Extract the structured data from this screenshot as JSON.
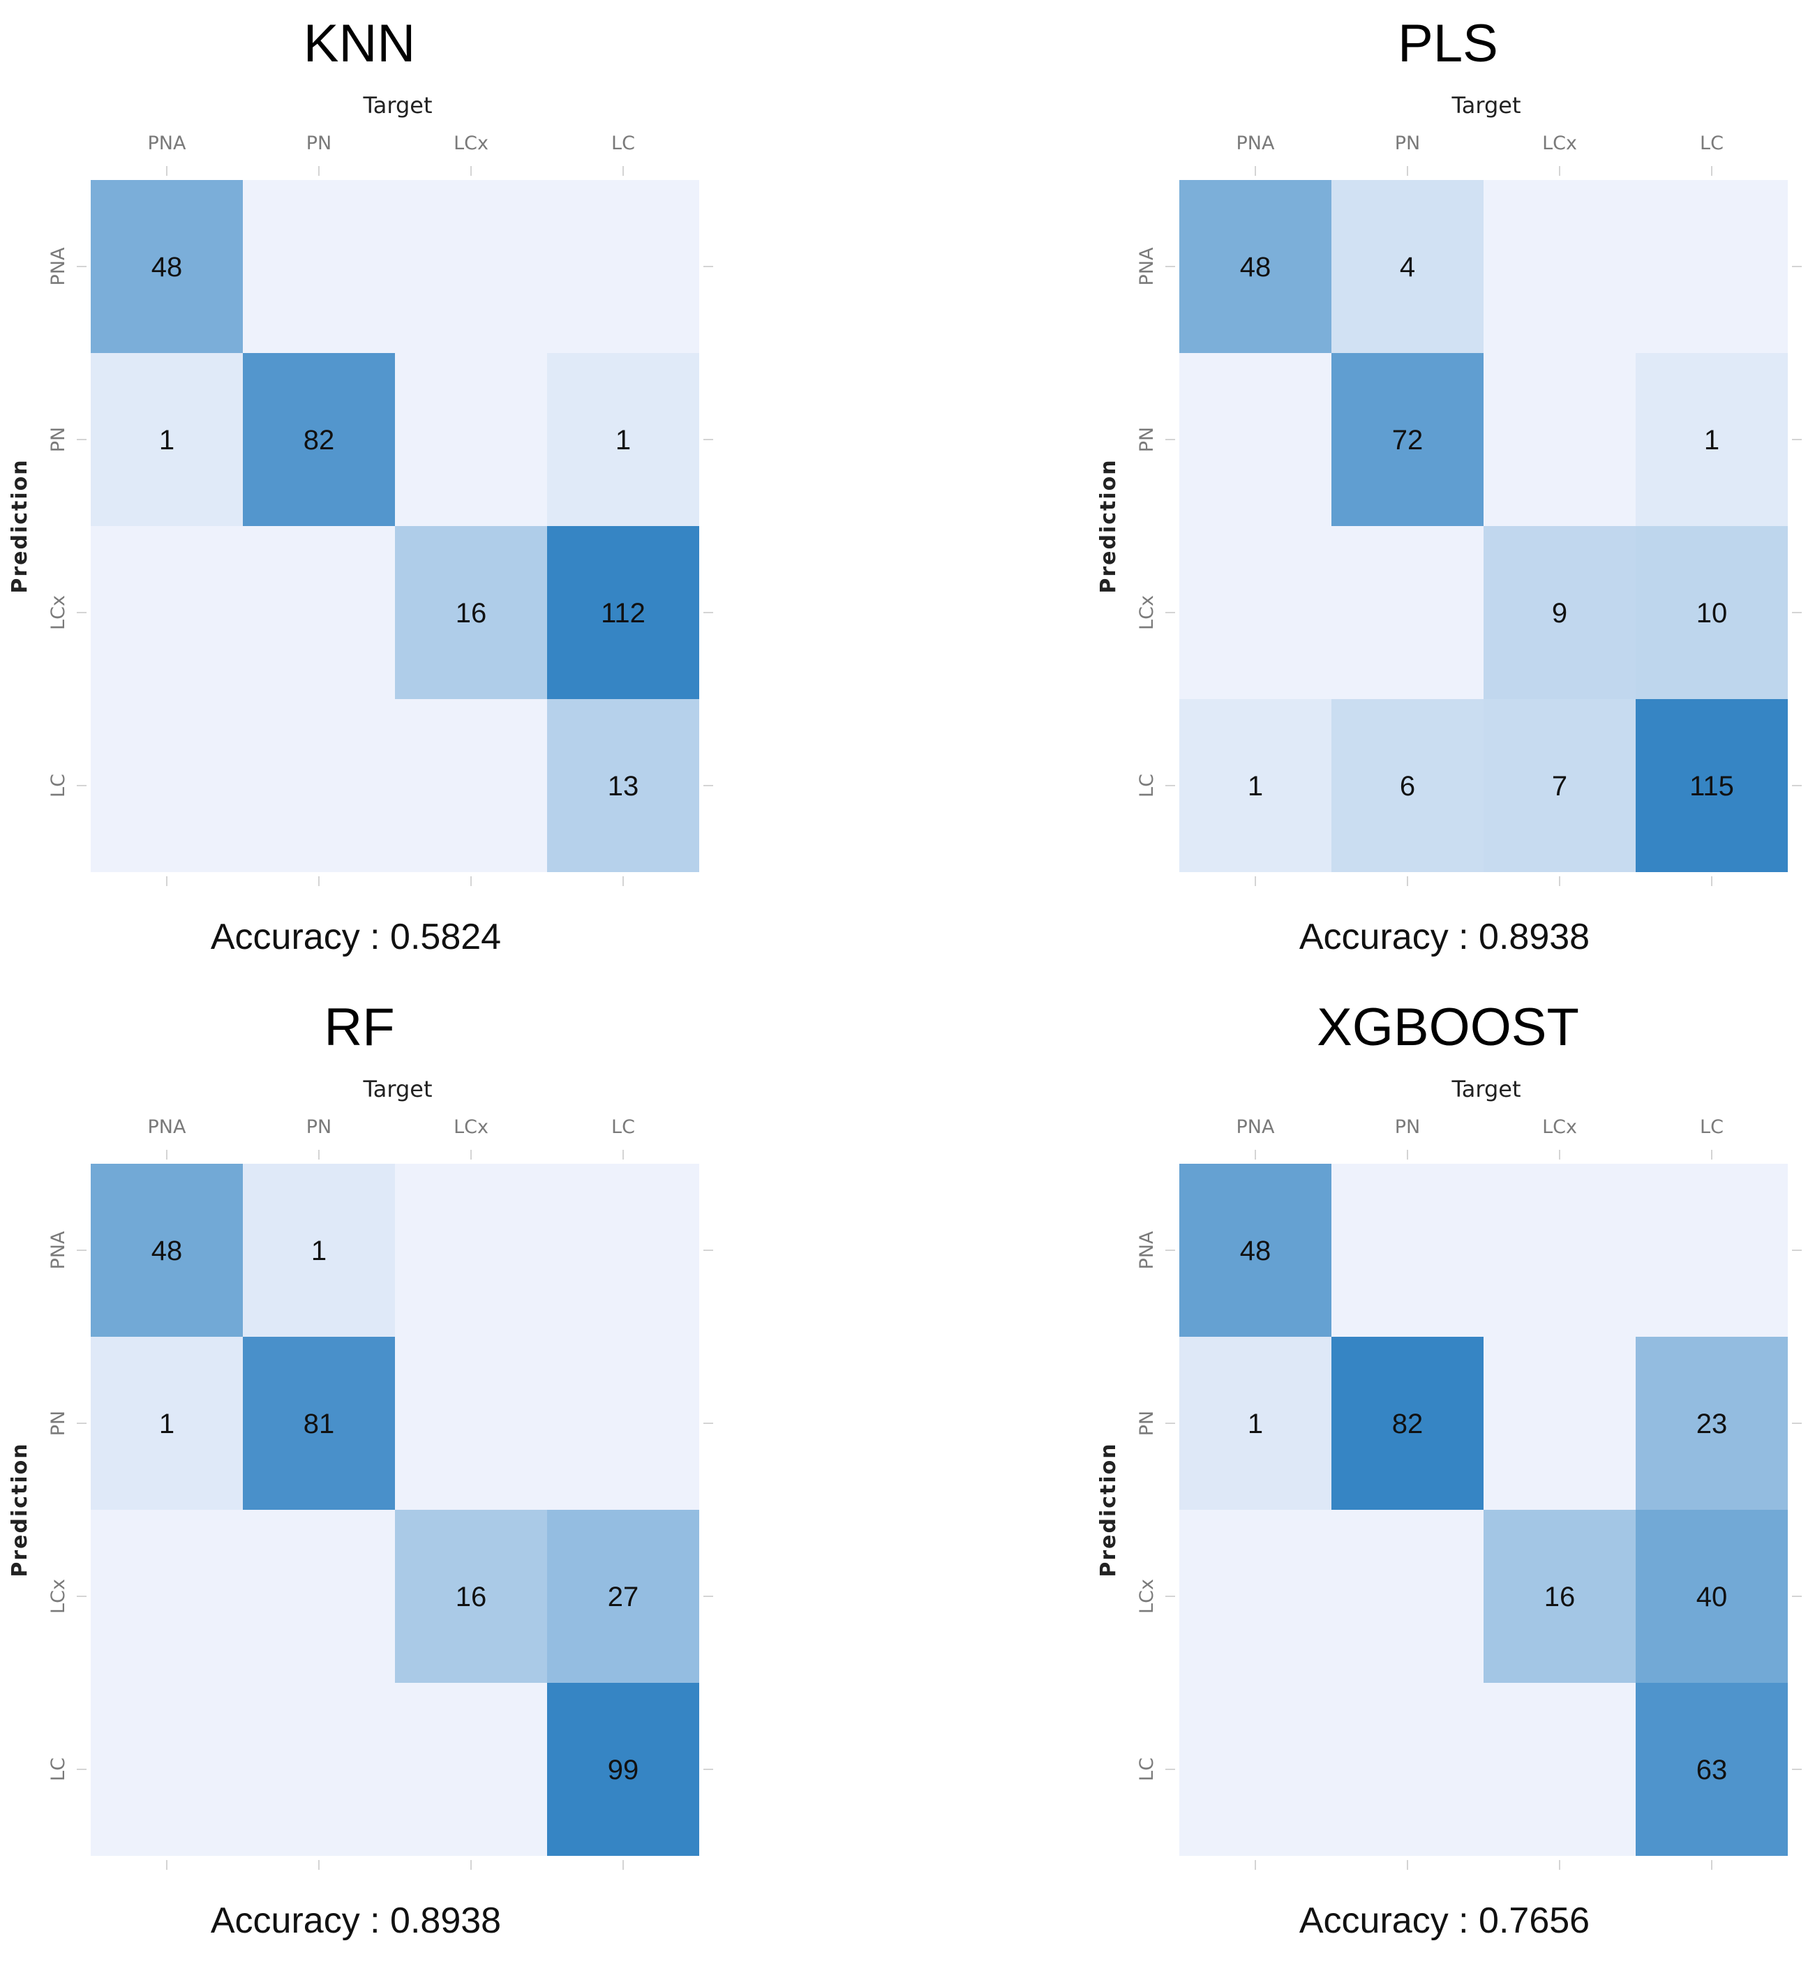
{
  "chart_data": [
    {
      "type": "heatmap",
      "title": "KNN",
      "xlabel": "Target",
      "ylabel": "Prediction",
      "categories": [
        "PNA",
        "PN",
        "LCx",
        "LC"
      ],
      "values": [
        [
          48,
          0,
          0,
          0
        ],
        [
          1,
          82,
          0,
          1
        ],
        [
          0,
          0,
          16,
          112
        ],
        [
          0,
          0,
          0,
          13
        ]
      ],
      "accuracy_label": "Accuracy : 0.5824"
    },
    {
      "type": "heatmap",
      "title": "PLS",
      "xlabel": "Target",
      "ylabel": "Prediction",
      "categories": [
        "PNA",
        "PN",
        "LCx",
        "LC"
      ],
      "values": [
        [
          48,
          4,
          0,
          0
        ],
        [
          0,
          72,
          0,
          1
        ],
        [
          0,
          0,
          9,
          10
        ],
        [
          1,
          6,
          7,
          115
        ]
      ],
      "accuracy_label": "Accuracy : 0.8938"
    },
    {
      "type": "heatmap",
      "title": "RF",
      "xlabel": "Target",
      "ylabel": "Prediction",
      "categories": [
        "PNA",
        "PN",
        "LCx",
        "LC"
      ],
      "values": [
        [
          48,
          1,
          0,
          0
        ],
        [
          1,
          81,
          0,
          0
        ],
        [
          0,
          0,
          16,
          27
        ],
        [
          0,
          0,
          0,
          99
        ]
      ],
      "accuracy_label": "Accuracy : 0.8938"
    },
    {
      "type": "heatmap",
      "title": "XGBOOST",
      "xlabel": "Target",
      "ylabel": "Prediction",
      "categories": [
        "PNA",
        "PN",
        "LCx",
        "LC"
      ],
      "values": [
        [
          48,
          0,
          0,
          0
        ],
        [
          1,
          82,
          0,
          23
        ],
        [
          0,
          0,
          16,
          40
        ],
        [
          0,
          0,
          0,
          63
        ]
      ],
      "accuracy_label": "Accuracy : 0.7656"
    }
  ],
  "colors": {
    "low": "#eef2fc",
    "high": "#3685c4",
    "empty": "#eef2fc"
  }
}
